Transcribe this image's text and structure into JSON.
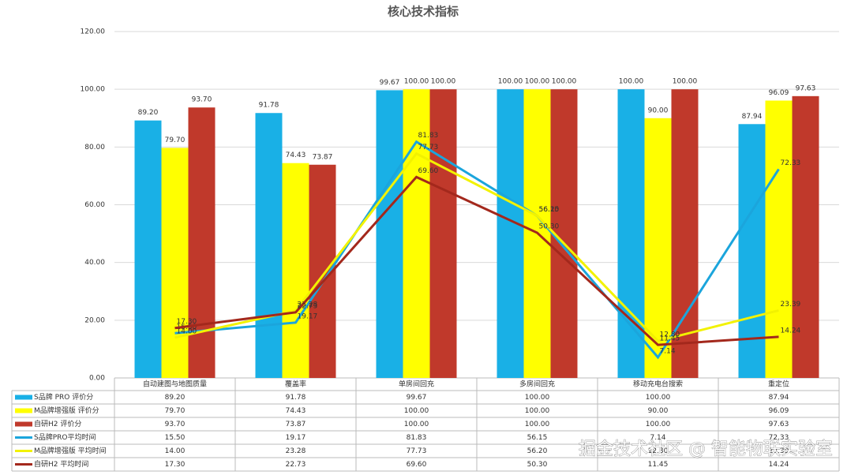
{
  "chart_data": {
    "type": "bar",
    "title": "核心技术指标",
    "categories": [
      "自动建图与地图质量",
      "覆盖率",
      "单房间回充",
      "多房间回充",
      "移动充电台搜索",
      "重定位"
    ],
    "ylim": [
      0,
      120
    ],
    "yticks": [
      {
        "value": 0,
        "label": "0.00"
      },
      {
        "value": 20,
        "label": "20.00"
      },
      {
        "value": 40,
        "label": "40.00"
      },
      {
        "value": 60,
        "label": "60.00"
      },
      {
        "value": 80,
        "label": "80.00"
      },
      {
        "value": 100,
        "label": "100.00"
      },
      {
        "value": 120,
        "label": "120.00"
      }
    ],
    "grid": true,
    "series": [
      {
        "name": "S品牌 PRO 评价分",
        "type": "bar",
        "color": "#19b0e6",
        "values": [
          89.2,
          91.78,
          99.67,
          100,
          100,
          87.94
        ],
        "value_labels": [
          "89.20",
          "91.78",
          "99.67",
          "100.00",
          "100.00",
          "87.94"
        ]
      },
      {
        "name": "M品牌增强版 评价分",
        "type": "bar",
        "color": "#ffff00",
        "values": [
          79.7,
          74.43,
          100,
          100,
          90,
          96.09
        ],
        "value_labels": [
          "79.70",
          "74.43",
          "100.00",
          "100.00",
          "90.00",
          "96.09"
        ]
      },
      {
        "name": "自研H2 评价分",
        "type": "bar",
        "color": "#c0392b",
        "values": [
          93.7,
          73.87,
          100,
          100,
          100,
          97.63
        ],
        "value_labels": [
          "93.70",
          "73.87",
          "100.00",
          "100.00",
          "100.00",
          "97.63"
        ]
      },
      {
        "name": "S品牌PRO平均时间",
        "type": "line",
        "color": "#1ba5dc",
        "values": [
          15.5,
          19.17,
          81.83,
          56.15,
          7.14,
          72.33
        ],
        "value_labels": [
          "15.50",
          "19.17",
          "81.83",
          "56.15",
          "7.14",
          "72.33"
        ]
      },
      {
        "name": "M品牌增强版 平均时间",
        "type": "line",
        "color": "#f2f200",
        "values": [
          14,
          23.28,
          77.73,
          56.2,
          12.8,
          23.39
        ],
        "value_labels": [
          "14.00",
          "23.28",
          "77.73",
          "56.20",
          "12.80",
          "23.39"
        ]
      },
      {
        "name": "自研H2 平均时间",
        "type": "line",
        "color": "#a3281c",
        "values": [
          17.3,
          22.73,
          69.6,
          50.3,
          11.45,
          14.24
        ],
        "value_labels": [
          "17.30",
          "22.73",
          "69.60",
          "50.30",
          "11.45",
          "14.24"
        ]
      }
    ],
    "watermark": "掘金技术社区 @ 智能物联实验室"
  }
}
